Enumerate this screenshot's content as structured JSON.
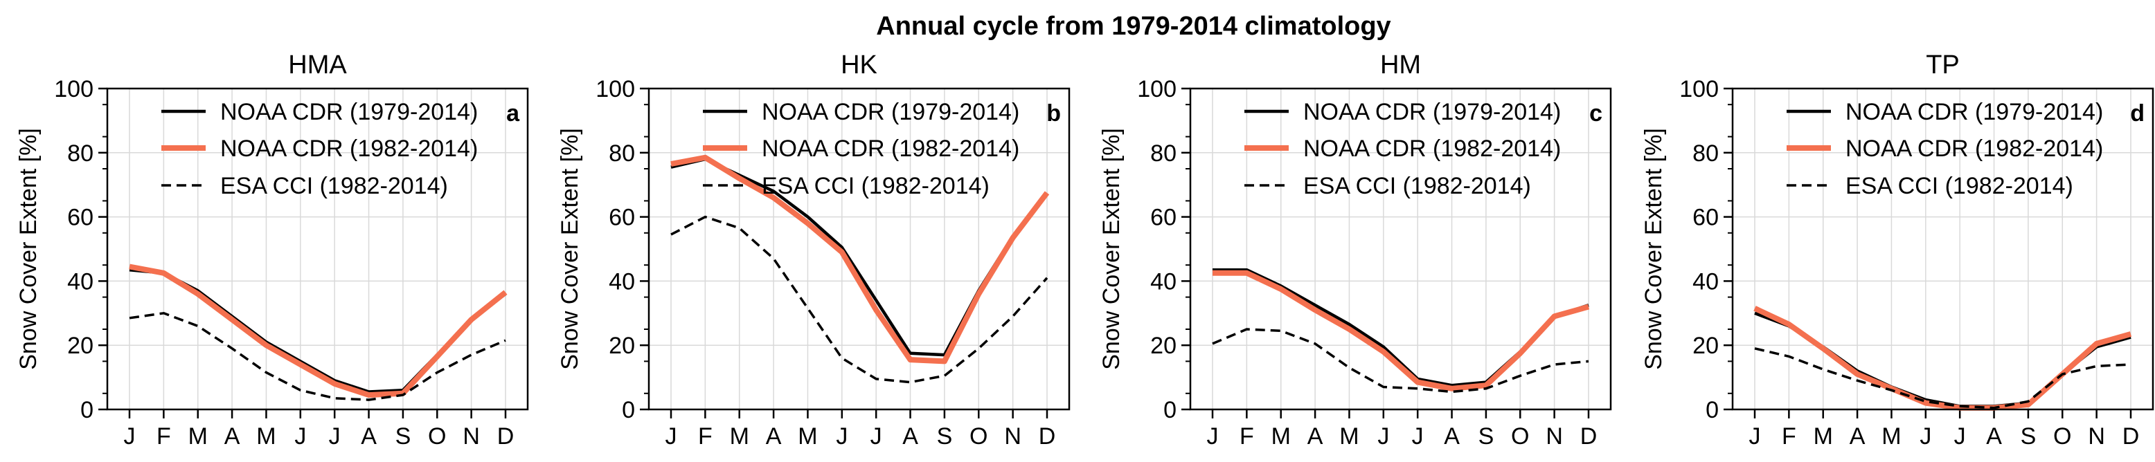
{
  "suptitle": "Annual cycle from 1979-2014 climatology",
  "colors": {
    "noaa_1979": "#000000",
    "noaa_1982": "#f4704f",
    "esa": "#000000",
    "grid": "#d9d9d9"
  },
  "chart_data": [
    {
      "type": "line",
      "title": "HMA",
      "panel_label": "a",
      "ylabel": "Snow Cover Extent [%]",
      "ylim": [
        0,
        100
      ],
      "yticks": [
        0,
        20,
        40,
        60,
        80,
        100
      ],
      "categories": [
        "J",
        "F",
        "M",
        "A",
        "M",
        "J",
        "J",
        "A",
        "S",
        "O",
        "N",
        "D"
      ],
      "grid": true,
      "legend": "top-right",
      "series": [
        {
          "name": "NOAA CDR (1979-2014)",
          "style": "solid",
          "values": [
            43.5,
            42.5,
            37,
            29,
            21,
            15,
            9,
            5.5,
            6,
            17,
            28,
            36
          ]
        },
        {
          "name": "NOAA CDR (1982-2014)",
          "style": "solid-thick",
          "values": [
            44.5,
            42.5,
            36,
            28,
            20,
            14,
            8,
            4.5,
            5,
            16.5,
            28,
            36.5
          ]
        },
        {
          "name": "ESA CCI (1982-2014)",
          "style": "dashed",
          "values": [
            28.5,
            30,
            26,
            19,
            11.5,
            6,
            3.5,
            3,
            4.5,
            11.5,
            17,
            21.5
          ]
        }
      ]
    },
    {
      "type": "line",
      "title": "HK",
      "panel_label": "b",
      "ylabel": "Snow Cover Extent [%]",
      "ylim": [
        0,
        100
      ],
      "yticks": [
        0,
        20,
        40,
        60,
        80,
        100
      ],
      "categories": [
        "J",
        "F",
        "M",
        "A",
        "M",
        "J",
        "J",
        "A",
        "S",
        "O",
        "N",
        "D"
      ],
      "grid": true,
      "legend": "top-right",
      "series": [
        {
          "name": "NOAA CDR (1979-2014)",
          "style": "solid",
          "values": [
            75.5,
            78,
            73,
            68,
            60,
            50.5,
            34,
            17.5,
            17,
            37,
            54,
            67
          ]
        },
        {
          "name": "NOAA CDR (1982-2014)",
          "style": "solid-thick",
          "values": [
            76.5,
            78.5,
            72,
            66,
            58,
            49,
            31,
            15.5,
            15,
            36,
            53.5,
            67.5
          ]
        },
        {
          "name": "ESA CCI (1982-2014)",
          "style": "dashed",
          "values": [
            54.5,
            60,
            56.5,
            47,
            31.5,
            16,
            9.5,
            8.5,
            10.5,
            19,
            29,
            41
          ]
        }
      ]
    },
    {
      "type": "line",
      "title": "HM",
      "panel_label": "c",
      "ylabel": "Snow Cover Extent [%]",
      "ylim": [
        0,
        100
      ],
      "yticks": [
        0,
        20,
        40,
        60,
        80,
        100
      ],
      "categories": [
        "J",
        "F",
        "M",
        "A",
        "M",
        "J",
        "J",
        "A",
        "S",
        "O",
        "N",
        "D"
      ],
      "grid": true,
      "legend": "top-right",
      "series": [
        {
          "name": "NOAA CDR (1979-2014)",
          "style": "solid",
          "values": [
            43.5,
            43.5,
            38.5,
            32.5,
            26.5,
            19.5,
            9.5,
            7.5,
            8.5,
            18,
            29,
            32.5
          ]
        },
        {
          "name": "NOAA CDR (1982-2014)",
          "style": "solid-thick",
          "values": [
            42.5,
            42.5,
            37.5,
            31,
            25,
            18,
            8.5,
            6.5,
            7.5,
            17.5,
            29,
            32
          ]
        },
        {
          "name": "ESA CCI (1982-2014)",
          "style": "dashed",
          "values": [
            20.5,
            25,
            24.5,
            20.5,
            13,
            7,
            6.5,
            5.5,
            6.5,
            10.5,
            14,
            15
          ]
        }
      ]
    },
    {
      "type": "line",
      "title": "TP",
      "panel_label": "d",
      "ylabel": "Snow Cover Extent [%]",
      "ylim": [
        0,
        100
      ],
      "yticks": [
        0,
        20,
        40,
        60,
        80,
        100
      ],
      "categories": [
        "J",
        "F",
        "M",
        "A",
        "M",
        "J",
        "J",
        "A",
        "S",
        "O",
        "N",
        "D"
      ],
      "grid": true,
      "legend": "top-right",
      "series": [
        {
          "name": "NOAA CDR (1979-2014)",
          "style": "solid",
          "values": [
            30,
            26,
            19.5,
            12,
            7,
            3,
            1,
            1,
            2,
            11,
            19.5,
            22.5
          ]
        },
        {
          "name": "NOAA CDR (1982-2014)",
          "style": "solid-thick",
          "values": [
            31.5,
            26.5,
            19,
            11,
            6.5,
            2,
            0.5,
            0.5,
            1.5,
            11,
            20.5,
            23.5
          ]
        },
        {
          "name": "ESA CCI (1982-2014)",
          "style": "dashed",
          "values": [
            19,
            16.5,
            12.5,
            9,
            6,
            2.5,
            1,
            0.5,
            2.5,
            11,
            13.5,
            14
          ]
        }
      ]
    }
  ]
}
